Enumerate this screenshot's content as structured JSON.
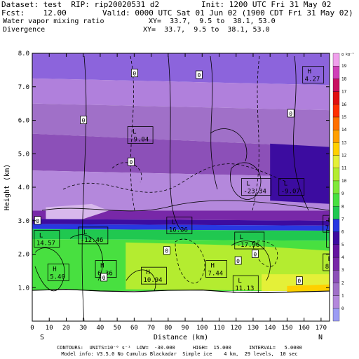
{
  "header": {
    "dataset": "Dataset: test  RIP: rip20020531 d2",
    "init": "Init: 1200 UTC Fri 31 May 02",
    "fcst": "Fcst:    12.00",
    "valid": "Valid: 0000 UTC Sat 01 Jun 02 (1900 CDT Fri 31 May 02)",
    "field1": "Water vapor mixing ratio",
    "xy1": "XY=  33.7,  9.5 to  38.1, 53.0",
    "field2": "Divergence",
    "xy2": "XY=  33.7,  9.5 to  38.1, 53.0"
  },
  "footer": {
    "line1": "CONTOURS:  UNITS=10⁻⁶ s⁻¹  LOW=  -30.000      HIGH=  15.000      INTERVAL=   5.0000",
    "line2": "Model info: V3.5.0 No Cumulus Blackadar  Simple ice    4 km,  29 levels,  10 sec"
  },
  "chart_data": {
    "type": "heatmap",
    "xlabel": "Distance (km)",
    "ylabel": "Height (km)",
    "xlim": [
      0,
      175
    ],
    "ylim": [
      0,
      8
    ],
    "x_ticks": [
      0,
      10,
      20,
      30,
      40,
      50,
      60,
      70,
      80,
      90,
      100,
      110,
      120,
      130,
      140,
      150,
      160,
      170
    ],
    "y_ticks": [
      {
        "v": 1,
        "label": "1.0"
      },
      {
        "v": 2,
        "label": "2.0"
      },
      {
        "v": 3,
        "label": "3.0"
      },
      {
        "v": 4,
        "label": "4.0"
      },
      {
        "v": 5,
        "label": "5.0"
      },
      {
        "v": 6,
        "label": "6.0"
      },
      {
        "v": 7,
        "label": "7.0"
      },
      {
        "v": 8,
        "label": "8.0"
      }
    ],
    "left_end": "S",
    "right_end": "N",
    "colorbar": {
      "unit_label": "g kg⁻¹",
      "levels": [
        -1,
        0,
        1,
        2,
        3,
        4,
        5,
        6,
        7,
        8,
        9,
        10,
        11,
        12,
        13,
        14,
        15,
        16,
        17,
        18,
        19
      ],
      "colors": [
        "#9c9cf4",
        "#b488dc",
        "#a070c8",
        "#8c50b8",
        "#7828a8",
        "#6414a0",
        "#3c0ca0",
        "#2838e0",
        "#20c850",
        "#48e040",
        "#80e838",
        "#b4ec30",
        "#e4f038",
        "#ffd000",
        "#ffa000",
        "#ff7000",
        "#ff3000",
        "#e01010",
        "#c81060",
        "#d040b8",
        "#f0a0ec"
      ],
      "labels": [
        {
          "v": 0,
          "label": "0"
        },
        {
          "v": 1,
          "label": "1"
        },
        {
          "v": 2,
          "label": "2"
        },
        {
          "v": 3,
          "label": "3"
        },
        {
          "v": 4,
          "label": "4"
        },
        {
          "v": 5,
          "label": "5"
        },
        {
          "v": 6,
          "label": "6"
        },
        {
          "v": 7,
          "label": "7"
        },
        {
          "v": 8,
          "label": "8"
        },
        {
          "v": 9,
          "label": "9"
        },
        {
          "v": 10,
          "label": "10"
        },
        {
          "v": 11,
          "label": "11"
        },
        {
          "v": 12,
          "label": "12"
        },
        {
          "v": 13,
          "label": "13"
        },
        {
          "v": 14,
          "label": "14"
        },
        {
          "v": 15,
          "label": "15"
        },
        {
          "v": 16,
          "label": "16"
        },
        {
          "v": 17,
          "label": "17"
        },
        {
          "v": 18,
          "label": "18"
        },
        {
          "v": 19,
          "label": "19"
        }
      ]
    },
    "moisture_bands": [
      {
        "color": "#8c64dc",
        "x": [
          0,
          176
        ],
        "top": [
          8,
          8
        ],
        "bottom": [
          7.25,
          7.05
        ]
      },
      {
        "color": "#b080dc",
        "x": [
          0,
          176
        ],
        "top": [
          7.25,
          7.05
        ],
        "bottom": [
          6.5,
          6.3
        ]
      },
      {
        "color": "#a070c8",
        "x": [
          0,
          176
        ],
        "top": [
          6.5,
          6.3
        ],
        "bottom": [
          5.6,
          5.2
        ]
      },
      {
        "color": "#8c50b8",
        "x": [
          0,
          176
        ],
        "top": [
          5.6,
          5.2
        ],
        "bottom": [
          4.5,
          4.3
        ]
      },
      {
        "color": "#b488dc",
        "x": [
          0,
          176
        ],
        "top": [
          4.5,
          4.3
        ],
        "bottom": [
          3.3,
          3.3
        ]
      },
      {
        "color": "#7828a8",
        "x": [
          0,
          176
        ],
        "top": [
          3.3,
          3.3
        ],
        "bottom": [
          3.05,
          3.0
        ]
      },
      {
        "color": "#3c0ca0",
        "x": [
          0,
          176
        ],
        "top": [
          3.05,
          3.0
        ],
        "bottom": [
          2.9,
          2.85
        ]
      },
      {
        "color": "#2838e0",
        "x": [
          0,
          176
        ],
        "top": [
          2.9,
          2.85
        ],
        "bottom": [
          2.75,
          2.7
        ]
      },
      {
        "color": "#20c850",
        "x": [
          0,
          176
        ],
        "top": [
          2.75,
          2.7
        ],
        "bottom": [
          2.45,
          2.4
        ]
      },
      {
        "color": "#48e040",
        "x": [
          0,
          176
        ],
        "top": [
          2.45,
          2.4
        ],
        "bottom": [
          0.9,
          0.9
        ]
      }
    ],
    "moisture_patches": [
      {
        "color": "#b4ec30",
        "points": [
          [
            55,
            2.35
          ],
          [
            95,
            2.3
          ],
          [
            130,
            2.25
          ],
          [
            176,
            2.1
          ],
          [
            176,
            0.9
          ],
          [
            55,
            0.95
          ]
        ]
      },
      {
        "color": "#e4f038",
        "points": [
          [
            135,
            1.4
          ],
          [
            176,
            1.4
          ],
          [
            176,
            0.9
          ],
          [
            135,
            0.9
          ]
        ]
      },
      {
        "color": "#ffd000",
        "points": [
          [
            150,
            1.05
          ],
          [
            176,
            1.1
          ],
          [
            176,
            0.85
          ],
          [
            150,
            0.85
          ]
        ]
      },
      {
        "color": "#3c0ca0",
        "points": [
          [
            140,
            5.3
          ],
          [
            176,
            5.2
          ],
          [
            176,
            3.5
          ],
          [
            140,
            3.6
          ]
        ]
      },
      {
        "color": "#d8b8ec",
        "points": [
          [
            8,
            3.4
          ],
          [
            35,
            3.5
          ],
          [
            45,
            3.3
          ],
          [
            30,
            3.05
          ],
          [
            8,
            3.05
          ]
        ]
      }
    ],
    "terrain": [
      [
        0,
        0.92
      ],
      [
        20,
        0.95
      ],
      [
        40,
        0.9
      ],
      [
        60,
        0.88
      ],
      [
        80,
        0.92
      ],
      [
        100,
        0.93
      ],
      [
        120,
        0.86
      ],
      [
        140,
        0.85
      ],
      [
        160,
        0.88
      ],
      [
        176,
        0.9
      ]
    ],
    "contour_labels": [
      {
        "x": 57,
        "y": 5.6,
        "text": "L\n-9.04"
      },
      {
        "x": 124,
        "y": 4.05,
        "text": "L\n-23.34"
      },
      {
        "x": 146,
        "y": 4.05,
        "text": "L\n-9.07"
      },
      {
        "x": 160,
        "y": 7.4,
        "text": "H\n4.27"
      },
      {
        "x": 28,
        "y": 2.6,
        "text": "L\n-12.46"
      },
      {
        "x": 80,
        "y": 2.9,
        "text": "L\n16.36"
      },
      {
        "x": 120,
        "y": 2.45,
        "text": "L\n-17.96"
      },
      {
        "x": 2,
        "y": 2.5,
        "text": "L\n14.57"
      },
      {
        "x": 174,
        "y": 2.5,
        "text": "L\n16."
      },
      {
        "x": 172,
        "y": 2.95,
        "text": "B\n7.9"
      },
      {
        "x": 10,
        "y": 1.5,
        "text": "H\n5.40"
      },
      {
        "x": 38,
        "y": 1.6,
        "text": "H\n6.36"
      },
      {
        "x": 65,
        "y": 1.4,
        "text": "H\n10.94"
      },
      {
        "x": 103,
        "y": 1.6,
        "text": "H\n7.44"
      },
      {
        "x": 119,
        "y": 1.15,
        "text": "L\n11.13"
      },
      {
        "x": 172,
        "y": 1.8,
        "text": "B\n8.9"
      }
    ],
    "zero_labels": [
      {
        "x": 60,
        "y": 7.4
      },
      {
        "x": 98,
        "y": 7.35
      },
      {
        "x": 30,
        "y": 6.0
      },
      {
        "x": 58,
        "y": 4.75
      },
      {
        "x": 3,
        "y": 3.0
      },
      {
        "x": 42,
        "y": 1.3
      },
      {
        "x": 79,
        "y": 2.1
      },
      {
        "x": 121,
        "y": 1.8
      },
      {
        "x": 157,
        "y": 1.2
      },
      {
        "x": 131,
        "y": 2.0
      },
      {
        "x": 152,
        "y": 6.2
      }
    ],
    "zero_label_text": "0"
  }
}
